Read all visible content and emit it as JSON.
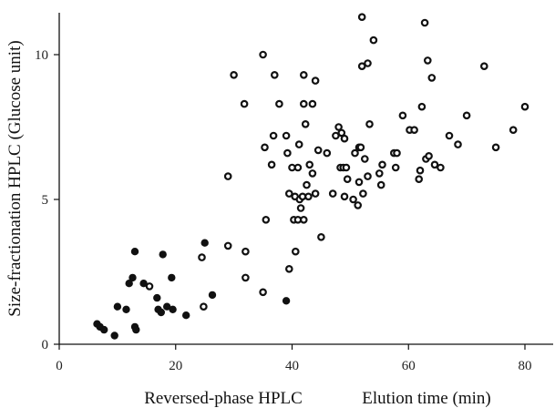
{
  "chart_data": {
    "type": "scatter",
    "title": "",
    "xlabel": "Reversed-phase HPLC",
    "xlabel_right": "Elution time (min)",
    "ylabel": "Size-fractionation HPLC (Glucose unit)",
    "xlim": [
      0,
      85
    ],
    "ylim": [
      0,
      11.7
    ],
    "xticks": [
      0,
      20,
      40,
      60,
      80
    ],
    "yticks": [
      0,
      5,
      10
    ],
    "xtick_labels": [
      "0",
      "20",
      "40",
      "60",
      "80"
    ],
    "ytick_labels": [
      "0",
      "5",
      "10"
    ],
    "grid": false,
    "legend": "none",
    "series": [
      {
        "marker": "filled",
        "color": "#111111",
        "points": [
          [
            6.5,
            0.7
          ],
          [
            7.0,
            0.6
          ],
          [
            7.7,
            0.5
          ],
          [
            9.5,
            0.3
          ],
          [
            10.0,
            1.3
          ],
          [
            11.5,
            1.2
          ],
          [
            12.0,
            2.1
          ],
          [
            12.6,
            2.3
          ],
          [
            13.0,
            3.2
          ],
          [
            13.0,
            0.6
          ],
          [
            13.2,
            0.5
          ],
          [
            14.5,
            2.1
          ],
          [
            16.8,
            1.6
          ],
          [
            17.0,
            1.2
          ],
          [
            17.5,
            1.1
          ],
          [
            17.8,
            3.1
          ],
          [
            18.5,
            1.3
          ],
          [
            19.3,
            2.3
          ],
          [
            19.5,
            1.2
          ],
          [
            21.8,
            1.0
          ],
          [
            25.0,
            3.5
          ],
          [
            26.3,
            1.7
          ],
          [
            39.0,
            1.5
          ]
        ]
      },
      {
        "marker": "open",
        "color": "#111111",
        "points": [
          [
            15.5,
            2.0
          ],
          [
            24.5,
            3.0
          ],
          [
            24.8,
            1.3
          ],
          [
            29.0,
            3.4
          ],
          [
            29.0,
            5.8
          ],
          [
            30.0,
            9.3
          ],
          [
            31.8,
            8.3
          ],
          [
            32.0,
            2.3
          ],
          [
            32.0,
            3.2
          ],
          [
            35.0,
            10.0
          ],
          [
            35.0,
            1.8
          ],
          [
            35.3,
            6.8
          ],
          [
            35.5,
            4.3
          ],
          [
            36.5,
            6.2
          ],
          [
            36.8,
            7.2
          ],
          [
            37.0,
            9.3
          ],
          [
            37.8,
            8.3
          ],
          [
            39.5,
            2.6
          ],
          [
            39.0,
            7.2
          ],
          [
            39.2,
            6.6
          ],
          [
            39.5,
            5.2
          ],
          [
            40.0,
            6.1
          ],
          [
            40.3,
            4.3
          ],
          [
            40.5,
            5.1
          ],
          [
            40.6,
            3.2
          ],
          [
            41.0,
            4.3
          ],
          [
            41.0,
            6.1
          ],
          [
            41.2,
            6.9
          ],
          [
            41.3,
            5.0
          ],
          [
            41.5,
            4.7
          ],
          [
            41.8,
            5.1
          ],
          [
            42.0,
            9.3
          ],
          [
            42.0,
            8.3
          ],
          [
            42.0,
            4.3
          ],
          [
            42.3,
            7.6
          ],
          [
            42.5,
            5.5
          ],
          [
            42.8,
            5.1
          ],
          [
            43.0,
            6.2
          ],
          [
            43.5,
            8.3
          ],
          [
            43.5,
            5.9
          ],
          [
            44.0,
            9.1
          ],
          [
            44.0,
            5.2
          ],
          [
            44.5,
            6.7
          ],
          [
            45.0,
            3.7
          ],
          [
            46.0,
            6.6
          ],
          [
            47.0,
            5.2
          ],
          [
            47.5,
            7.2
          ],
          [
            48.0,
            7.5
          ],
          [
            48.3,
            6.1
          ],
          [
            48.5,
            7.3
          ],
          [
            48.8,
            6.1
          ],
          [
            49.0,
            5.1
          ],
          [
            49.0,
            7.1
          ],
          [
            49.3,
            6.1
          ],
          [
            49.5,
            5.7
          ],
          [
            50.5,
            5.0
          ],
          [
            50.8,
            6.6
          ],
          [
            51.3,
            4.8
          ],
          [
            51.5,
            6.8
          ],
          [
            51.5,
            5.6
          ],
          [
            51.8,
            6.8
          ],
          [
            52.0,
            9.6
          ],
          [
            52.0,
            11.3
          ],
          [
            52.2,
            5.2
          ],
          [
            52.5,
            6.4
          ],
          [
            53.0,
            9.7
          ],
          [
            53.0,
            5.8
          ],
          [
            53.3,
            7.6
          ],
          [
            54.0,
            10.5
          ],
          [
            55.0,
            5.9
          ],
          [
            55.3,
            5.5
          ],
          [
            55.5,
            6.2
          ],
          [
            57.5,
            6.6
          ],
          [
            57.8,
            6.1
          ],
          [
            58.0,
            6.6
          ],
          [
            59.0,
            7.9
          ],
          [
            60.2,
            7.4
          ],
          [
            61.0,
            7.4
          ],
          [
            61.8,
            5.7
          ],
          [
            62.0,
            6.0
          ],
          [
            62.3,
            8.2
          ],
          [
            62.8,
            11.1
          ],
          [
            63.0,
            6.4
          ],
          [
            63.3,
            9.8
          ],
          [
            63.5,
            6.5
          ],
          [
            64.0,
            9.2
          ],
          [
            64.5,
            6.2
          ],
          [
            65.5,
            6.1
          ],
          [
            67.0,
            7.2
          ],
          [
            68.5,
            6.9
          ],
          [
            70.0,
            7.9
          ],
          [
            73.0,
            9.6
          ],
          [
            75.0,
            6.8
          ],
          [
            78.0,
            7.4
          ],
          [
            80.0,
            8.2
          ]
        ]
      }
    ]
  }
}
